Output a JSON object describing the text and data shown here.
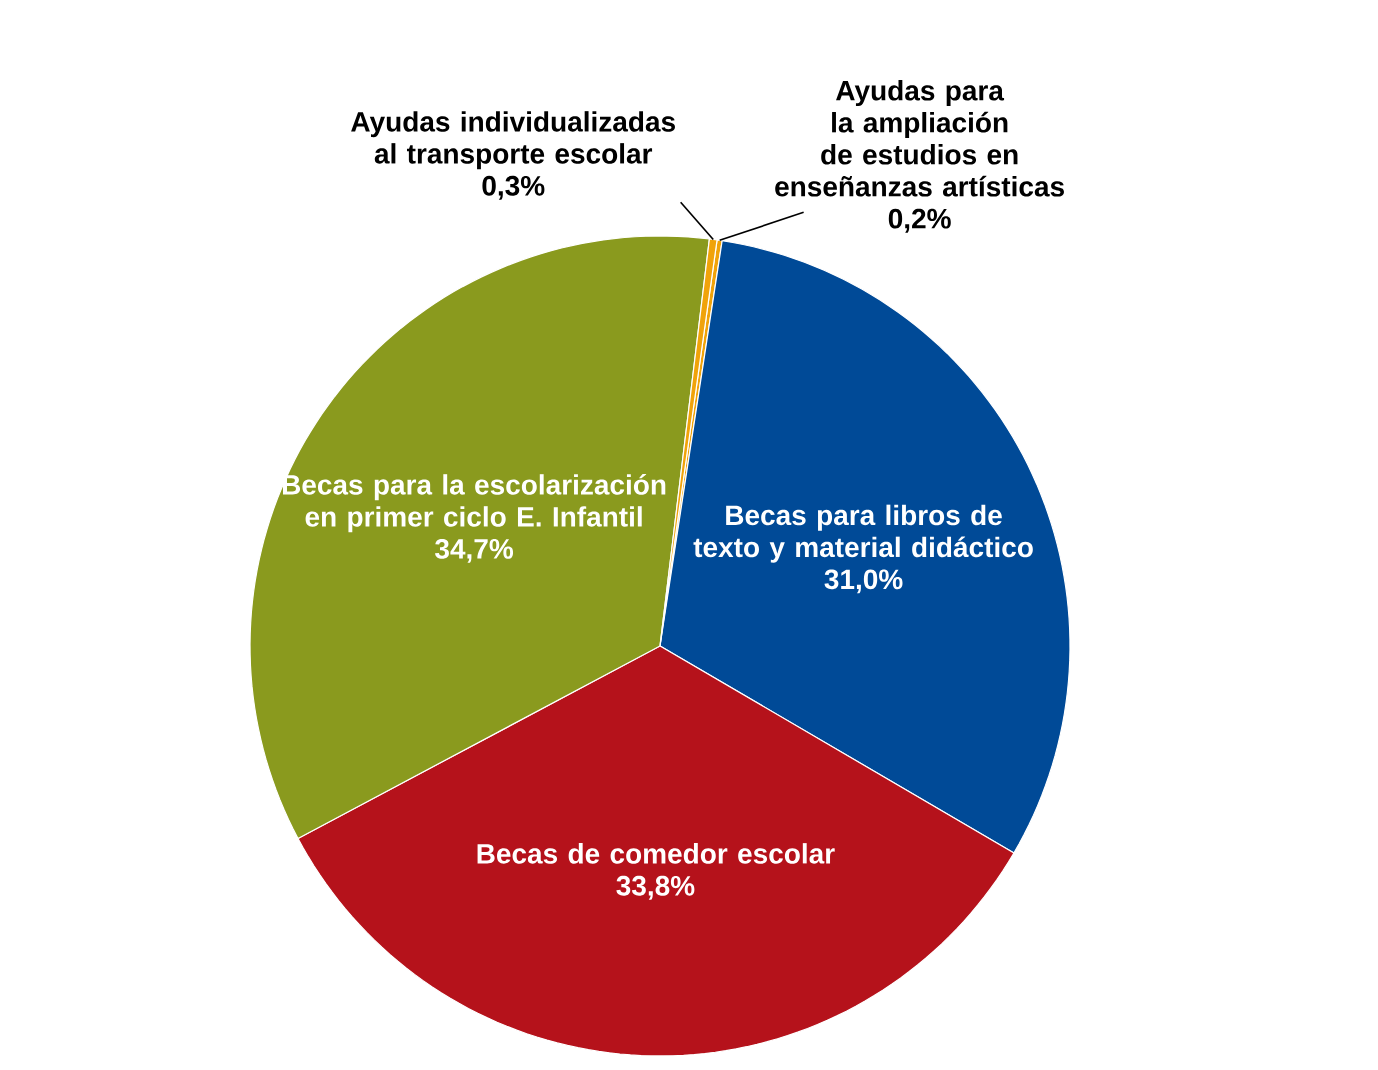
{
  "chart_data": {
    "type": "pie",
    "categories": [
      "Ayudas para la ampliación de estudios en enseñanzas artísticas",
      "Becas para libros de texto y material didáctico",
      "Becas de comedor escolar",
      "Becas para la escolarización en primer ciclo E. Infantil",
      "Ayudas individualizadas al transporte escolar"
    ],
    "values": [
      0.2,
      31.0,
      33.8,
      34.7,
      0.3
    ],
    "colors": [
      "#f0a30a",
      "#004a97",
      "#b5121b",
      "#8a9a1e",
      "#f0a30a"
    ],
    "value_labels": [
      "0,2%",
      "31,0%",
      "33,8%",
      "34,7%",
      "0,3%"
    ]
  }
}
